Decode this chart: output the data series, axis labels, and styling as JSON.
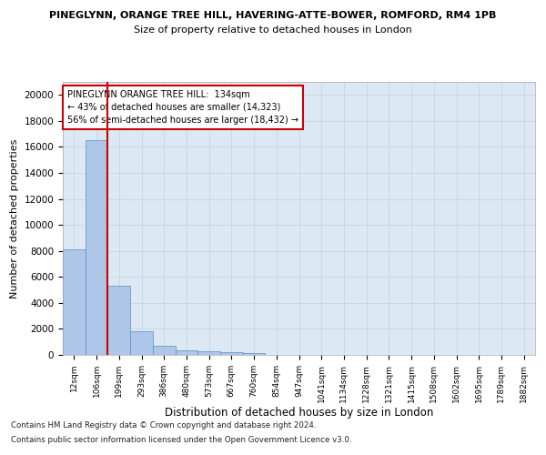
{
  "title_line1": "PINEGLYNN, ORANGE TREE HILL, HAVERING-ATTE-BOWER, ROMFORD, RM4 1PB",
  "title_line2": "Size of property relative to detached houses in London",
  "xlabel": "Distribution of detached houses by size in London",
  "ylabel": "Number of detached properties",
  "categories": [
    "12sqm",
    "106sqm",
    "199sqm",
    "293sqm",
    "386sqm",
    "480sqm",
    "573sqm",
    "667sqm",
    "760sqm",
    "854sqm",
    "947sqm",
    "1041sqm",
    "1134sqm",
    "1228sqm",
    "1321sqm",
    "1415sqm",
    "1508sqm",
    "1602sqm",
    "1695sqm",
    "1789sqm",
    "1882sqm"
  ],
  "values": [
    8100,
    16500,
    5300,
    1850,
    700,
    350,
    270,
    210,
    170,
    0,
    0,
    0,
    0,
    0,
    0,
    0,
    0,
    0,
    0,
    0,
    0
  ],
  "bar_color": "#aec6e8",
  "bar_edge_color": "#5590c0",
  "marker_color": "#cc0000",
  "ylim": [
    0,
    21000
  ],
  "yticks": [
    0,
    2000,
    4000,
    6000,
    8000,
    10000,
    12000,
    14000,
    16000,
    18000,
    20000
  ],
  "annotation_title": "PINEGLYNN ORANGE TREE HILL:  134sqm",
  "annotation_line2": "← 43% of detached houses are smaller (14,323)",
  "annotation_line3": "56% of semi-detached houses are larger (18,432) →",
  "annotation_box_color": "#ffffff",
  "annotation_box_edge": "#cc0000",
  "footer_line1": "Contains HM Land Registry data © Crown copyright and database right 2024.",
  "footer_line2": "Contains public sector information licensed under the Open Government Licence v3.0.",
  "bg_color": "#ffffff",
  "grid_color": "#c8d8e8",
  "plot_bg_color": "#dce8f4"
}
